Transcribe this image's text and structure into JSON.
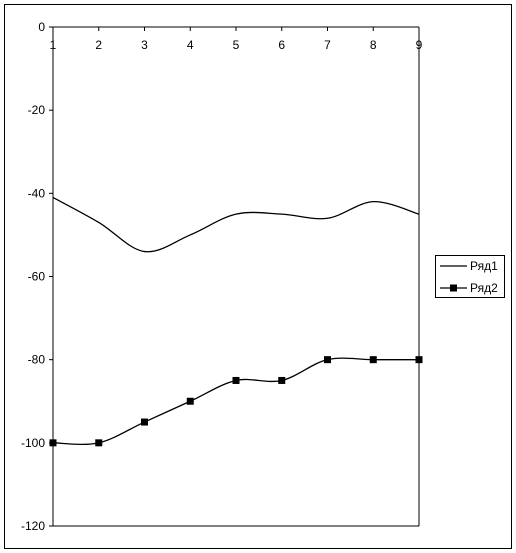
{
  "chart_data": {
    "type": "line",
    "title": "",
    "xlabel": "",
    "ylabel": "",
    "categories": [
      "1",
      "2",
      "3",
      "4",
      "5",
      "6",
      "7",
      "8",
      "9"
    ],
    "ylim": [
      -120,
      0
    ],
    "yticks": [
      "0",
      "-20",
      "-40",
      "-60",
      "-80",
      "-100",
      "-120"
    ],
    "yticks_values": [
      0,
      -20,
      -40,
      -60,
      -80,
      -100,
      -120
    ],
    "x_axis_position": "top",
    "grid": false,
    "smooth": true,
    "legend_position": "right",
    "series": [
      {
        "name": "Ряд1",
        "values": [
          -41,
          -47,
          -54,
          -50,
          -45,
          -45,
          -46,
          -42,
          -45
        ],
        "color": "#000000",
        "marker": "none"
      },
      {
        "name": "Ряд2",
        "values": [
          -100,
          -100,
          -95,
          -90,
          -85,
          -85,
          -80,
          -80,
          -80
        ],
        "color": "#000000",
        "marker": "square"
      }
    ]
  }
}
